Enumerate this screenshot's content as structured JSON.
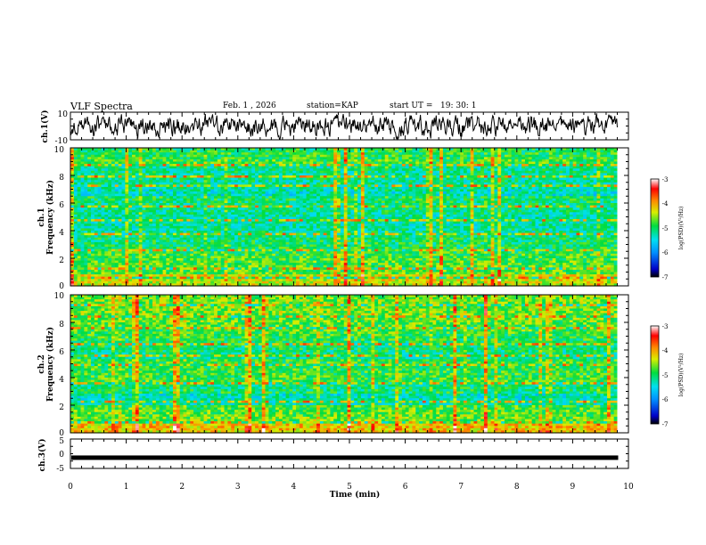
{
  "header": {
    "title": "VLF Spectra",
    "date": "Feb. 1 , 2026",
    "station": "station=KAP",
    "start_label": "start  UT =",
    "start_time": "19: 30: 1"
  },
  "chart_data": [
    {
      "type": "line",
      "panel": "ch1-waveform",
      "ylabel": "ch.1(V)",
      "ylim": [
        -10,
        10
      ],
      "yticks": [
        "10",
        "-10"
      ],
      "description_series": "fluctuating signal between about -8 V and 8 V",
      "x_range_min": [
        0,
        9.8
      ]
    },
    {
      "type": "heatmap",
      "panel": "ch1-spectrogram",
      "ylabel": "ch.1\nFrequency (kHz)",
      "ylabel_lines": [
        "ch.1",
        "Frequency (kHz)"
      ],
      "ylim": [
        0,
        10
      ],
      "yticks": [
        "0",
        "2",
        "4",
        "6",
        "8",
        "10"
      ],
      "colorbar": {
        "label": "log(PSD)(V²/Hz)",
        "range": [
          -7,
          -3
        ],
        "ticks": [
          "-3",
          "-4",
          "-5",
          "-6",
          "-7"
        ]
      }
    },
    {
      "type": "heatmap",
      "panel": "ch2-spectrogram",
      "ylabel_lines": [
        "ch.2",
        "Frequency (kHz)"
      ],
      "ylim": [
        0,
        10
      ],
      "yticks": [
        "0",
        "2",
        "4",
        "6",
        "8",
        "10"
      ],
      "colorbar": {
        "label": "log(PSD)(V²/Hz)",
        "range": [
          -7,
          -3
        ],
        "ticks": [
          "-3",
          "-4",
          "-5",
          "-6",
          "-7"
        ]
      }
    },
    {
      "type": "line",
      "panel": "ch3-waveform",
      "ylabel": "ch.3(V)",
      "ylim": [
        -5,
        5
      ],
      "yticks": [
        "5",
        "0",
        "-5"
      ],
      "level": -1.5
    }
  ],
  "xaxis": {
    "label": "Time (min)",
    "ticks": [
      "0",
      "1",
      "2",
      "3",
      "4",
      "5",
      "6",
      "7",
      "8",
      "9",
      "10"
    ],
    "xlim": [
      0,
      10
    ]
  },
  "colors": {
    "background": "#ffffff",
    "line": "#000000"
  }
}
